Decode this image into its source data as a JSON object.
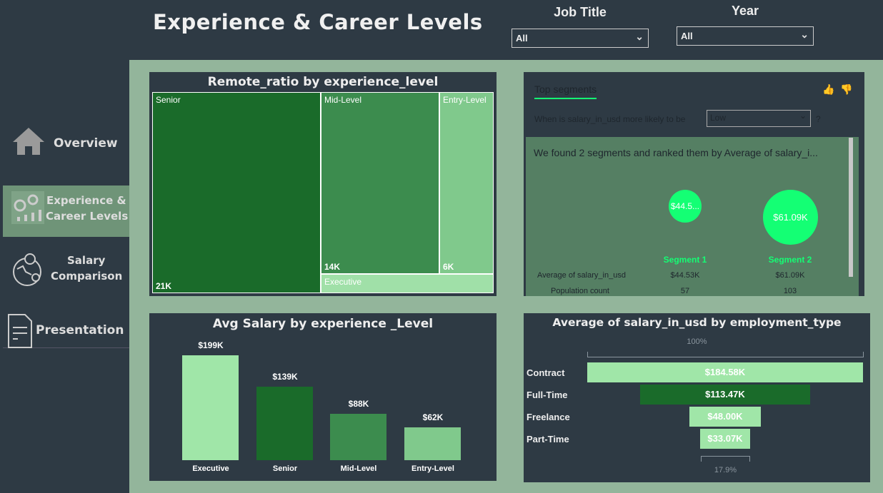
{
  "header": {
    "title": "Experience & Career Levels"
  },
  "filters": [
    {
      "label": "Job Title",
      "value": "All"
    },
    {
      "label": "Year",
      "value": "All"
    }
  ],
  "nav": [
    {
      "label": "Overview",
      "icon": "home-icon"
    },
    {
      "label": "Experience &",
      "label2": "Career Levels",
      "icon": "gears-chart-icon",
      "active": true
    },
    {
      "label": "Salary",
      "label2": "Comparison",
      "icon": "globe-pin-icon"
    },
    {
      "label": "Presentation",
      "icon": "document-icon"
    }
  ],
  "treemap": {
    "title": "Remote_ratio by experience_level",
    "items": [
      {
        "label": "Senior",
        "value": "21K",
        "color": "#1a6b2a"
      },
      {
        "label": "Mid-Level",
        "value": "14K",
        "color": "#3c8c4e"
      },
      {
        "label": "Entry-Level",
        "value": "6K",
        "color": "#80c98c"
      },
      {
        "label": "Executive",
        "value": "",
        "color": "#a0e0a8"
      }
    ]
  },
  "segments": {
    "tab": "Top segments",
    "question": "When is salary_in_usd more likely to be",
    "dropdown": "Low",
    "help": "?",
    "summary": "We found 2 segments and ranked them by Average of salary_i...",
    "items": [
      {
        "name": "Segment 1",
        "bubble": "$44.5...",
        "avg": "$44.53K",
        "count": "57"
      },
      {
        "name": "Segment 2",
        "bubble": "$61.09K",
        "avg": "$61.09K",
        "count": "103"
      }
    ],
    "row_labels": [
      "Average of salary_in_usd",
      "Population count"
    ],
    "accent": "#14ff74"
  },
  "chart_data": [
    {
      "type": "bar",
      "title": "Avg Salary by experience _Level",
      "categories": [
        "Executive",
        "Senior",
        "Mid-Level",
        "Entry-Level"
      ],
      "values": [
        199,
        139,
        88,
        62
      ],
      "data_labels": [
        "$199K",
        "$139K",
        "$88K",
        "$62K"
      ],
      "colors": [
        "#a0e6a8",
        "#1a6b2a",
        "#3c8c4e",
        "#80c98c"
      ],
      "ylim": [
        0,
        199
      ]
    },
    {
      "type": "bar",
      "orientation": "funnel",
      "title": "Average of salary_in_usd by employment_type",
      "categories": [
        "Contract",
        "Full-Time",
        "Freelance",
        "Part-Time"
      ],
      "values": [
        184.58,
        113.47,
        48.0,
        33.07
      ],
      "data_labels": [
        "$184.58K",
        "$113.47K",
        "$48.00K",
        "$33.07K"
      ],
      "colors": [
        "#a0e6a8",
        "#1a6b2a",
        "#a0e6a8",
        "#a0e6a8"
      ],
      "top_percent": "100%",
      "bottom_percent": "17.9%"
    }
  ]
}
